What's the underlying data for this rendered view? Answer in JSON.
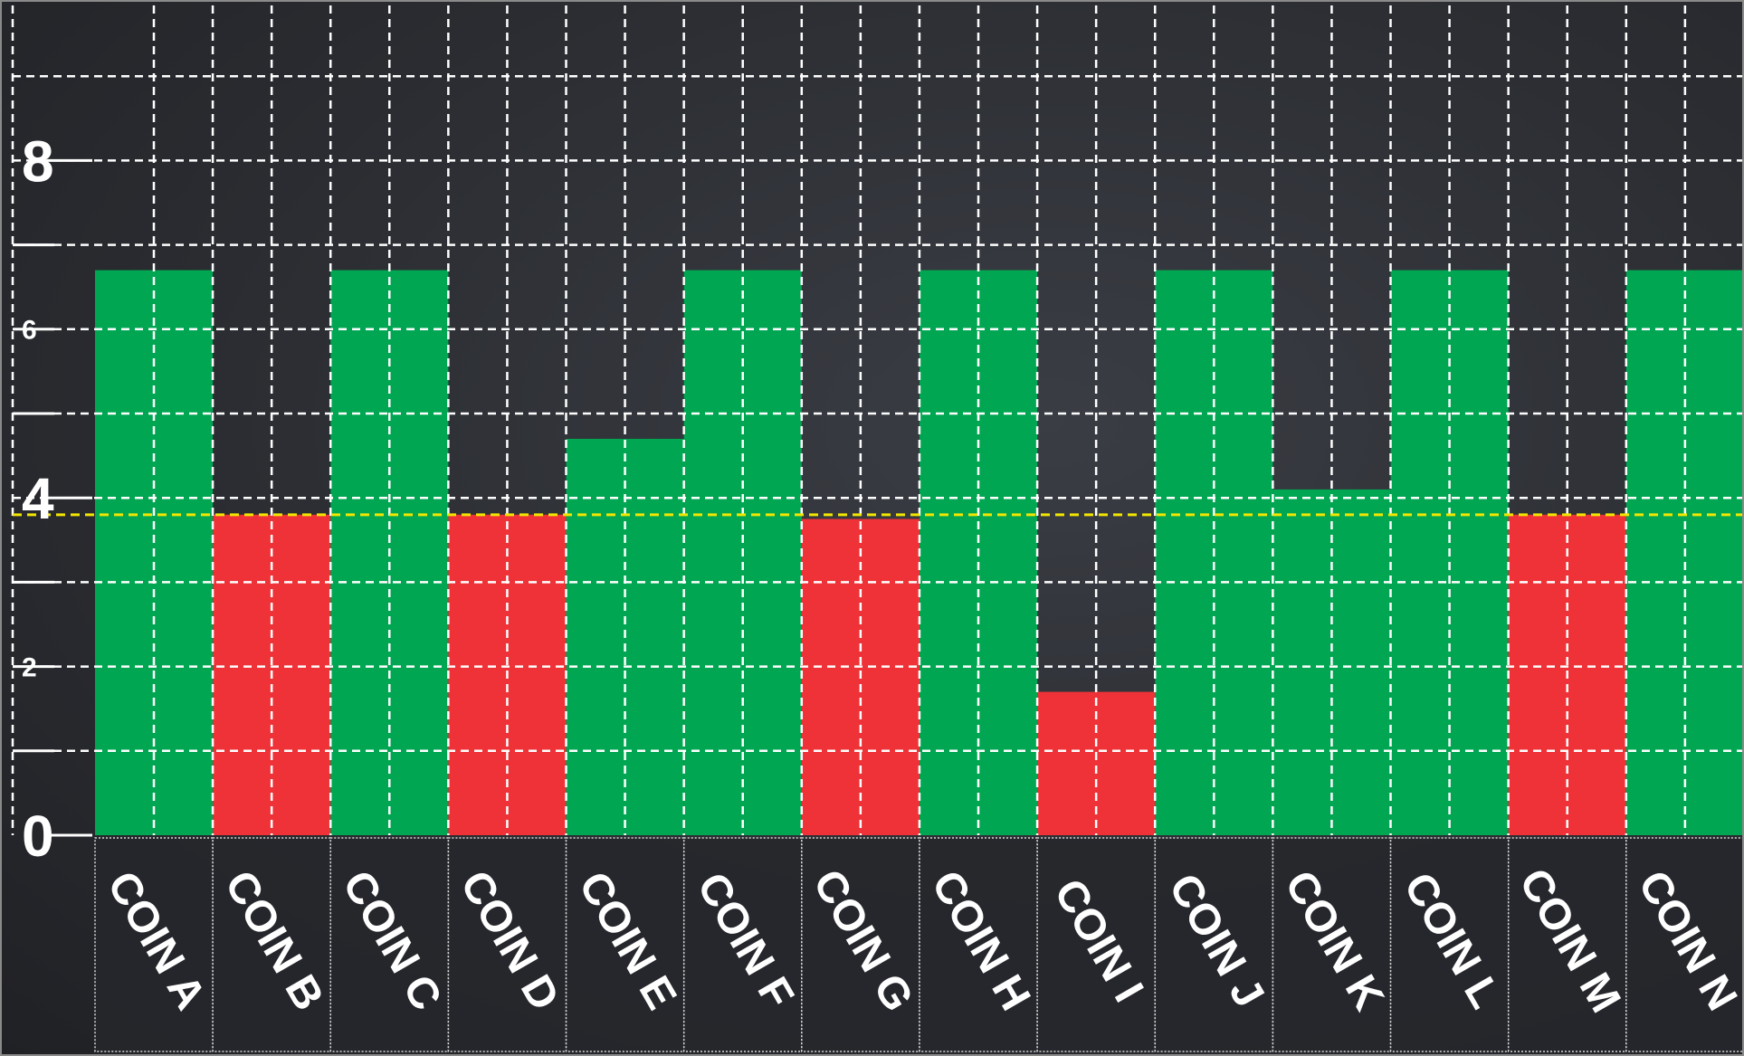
{
  "chart_data": {
    "type": "bar",
    "categories": [
      "COIN A",
      "COIN B",
      "COIN C",
      "COIN D",
      "COIN E",
      "COIN F",
      "COIN G",
      "COIN H",
      "COIN I",
      "COIN J",
      "COIN K",
      "COIN L",
      "COIN M",
      "COIN N"
    ],
    "values": [
      6.7,
      3.8,
      6.7,
      3.8,
      4.7,
      6.7,
      3.75,
      6.7,
      1.7,
      6.7,
      4.1,
      6.7,
      3.8,
      6.7
    ],
    "bar_colors": [
      "#00a651",
      "#ee3237",
      "#00a651",
      "#ee3237",
      "#00a651",
      "#00a651",
      "#ee3237",
      "#00a651",
      "#ee3237",
      "#00a651",
      "#00a651",
      "#00a651",
      "#ee3237",
      "#00a651"
    ],
    "y_ticks": [
      {
        "value": 0,
        "label": "0",
        "size": "large"
      },
      {
        "value": 1,
        "label": "",
        "size": "minor"
      },
      {
        "value": 2,
        "label": "2",
        "size": "small"
      },
      {
        "value": 3,
        "label": "",
        "size": "minor"
      },
      {
        "value": 4,
        "label": "4",
        "size": "large"
      },
      {
        "value": 5,
        "label": "",
        "size": "minor"
      },
      {
        "value": 6,
        "label": "6",
        "size": "small"
      },
      {
        "value": 7,
        "label": "",
        "size": "minor"
      },
      {
        "value": 8,
        "label": "8",
        "size": "large"
      }
    ],
    "ylim": [
      0,
      10
    ],
    "threshold": {
      "value": 3.8,
      "color": "#f2e600"
    },
    "grid": true,
    "colors": {
      "positive": "#00a651",
      "negative": "#ee3237",
      "grid": "#ffffff",
      "threshold": "#f2e600"
    }
  }
}
